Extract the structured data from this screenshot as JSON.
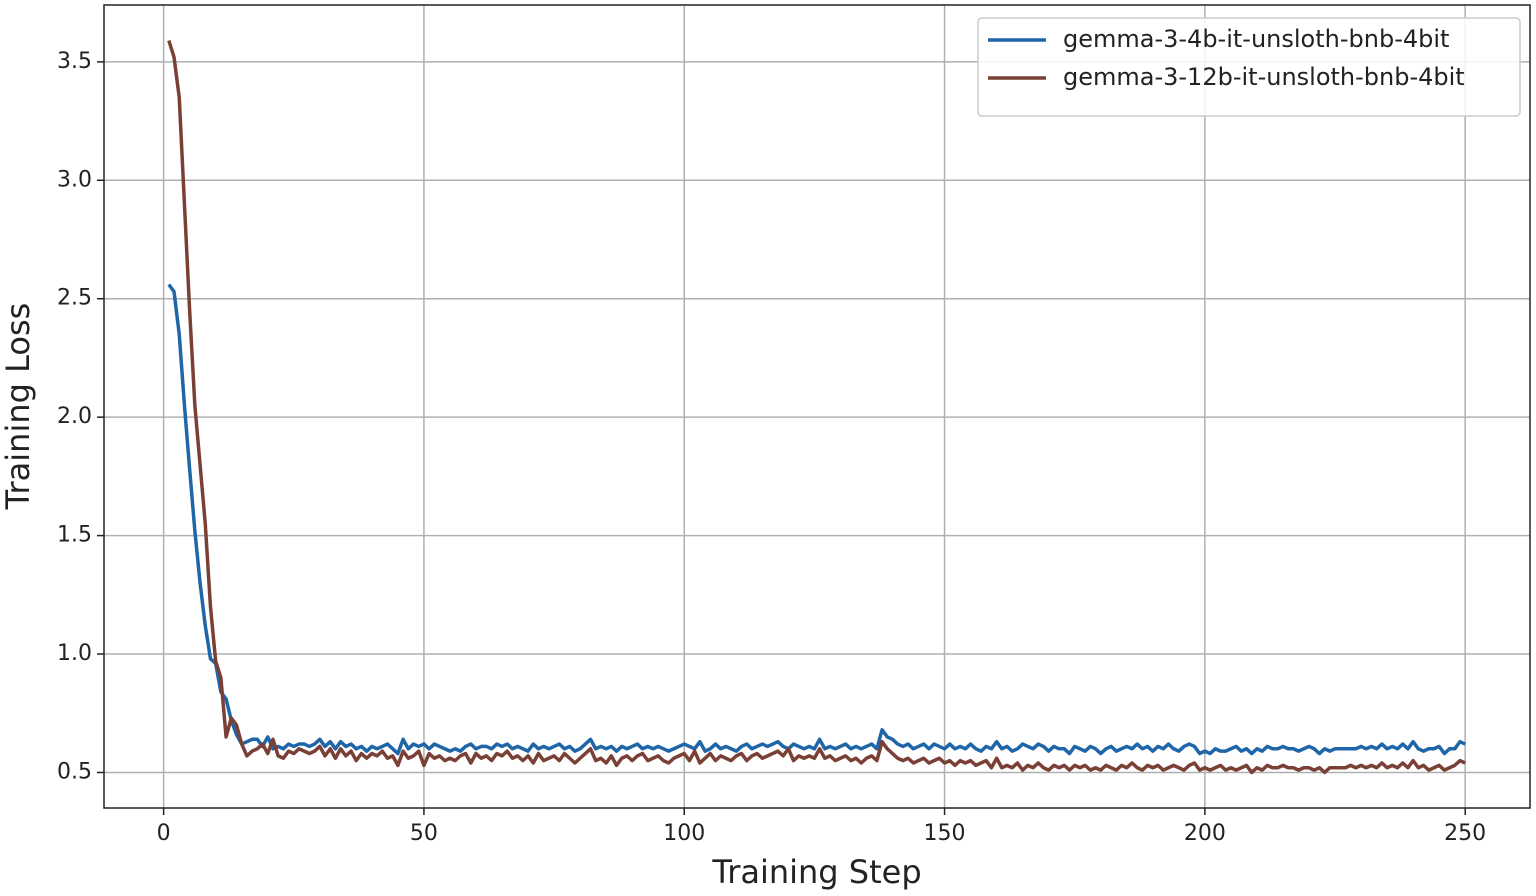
{
  "chart_data": {
    "type": "line",
    "xlabel": "Training Step",
    "ylabel": "Training Loss",
    "xlim": [
      -11.45,
      262.45
    ],
    "ylim": [
      0.35,
      3.74
    ],
    "xticks": [
      0,
      50,
      100,
      150,
      200,
      250
    ],
    "yticks": [
      0.5,
      {
        "value": 1,
        "label": "1.0"
      },
      1.5,
      {
        "value": 2,
        "label": "2.0"
      },
      2.5,
      {
        "value": 3,
        "label": "3.0"
      },
      3.5
    ],
    "grid": true,
    "legend": "upper right",
    "x": [
      1,
      2,
      3,
      4,
      5,
      6,
      7,
      8,
      9,
      10,
      11,
      12,
      13,
      14,
      15,
      16,
      17,
      18,
      19,
      20,
      21,
      22,
      23,
      24,
      25,
      26,
      27,
      28,
      29,
      30,
      31,
      32,
      33,
      34,
      35,
      36,
      37,
      38,
      39,
      40,
      41,
      42,
      43,
      44,
      45,
      46,
      47,
      48,
      49,
      50,
      51,
      52,
      53,
      54,
      55,
      56,
      57,
      58,
      59,
      60,
      61,
      62,
      63,
      64,
      65,
      66,
      67,
      68,
      69,
      70,
      71,
      72,
      73,
      74,
      75,
      76,
      77,
      78,
      79,
      80,
      81,
      82,
      83,
      84,
      85,
      86,
      87,
      88,
      89,
      90,
      91,
      92,
      93,
      94,
      95,
      96,
      97,
      98,
      99,
      100,
      101,
      102,
      103,
      104,
      105,
      106,
      107,
      108,
      109,
      110,
      111,
      112,
      113,
      114,
      115,
      116,
      117,
      118,
      119,
      120,
      121,
      122,
      123,
      124,
      125,
      126,
      127,
      128,
      129,
      130,
      131,
      132,
      133,
      134,
      135,
      136,
      137,
      138,
      139,
      140,
      141,
      142,
      143,
      144,
      145,
      146,
      147,
      148,
      149,
      150,
      151,
      152,
      153,
      154,
      155,
      156,
      157,
      158,
      159,
      160,
      161,
      162,
      163,
      164,
      165,
      166,
      167,
      168,
      169,
      170,
      171,
      172,
      173,
      174,
      175,
      176,
      177,
      178,
      179,
      180,
      181,
      182,
      183,
      184,
      185,
      186,
      187,
      188,
      189,
      190,
      191,
      192,
      193,
      194,
      195,
      196,
      197,
      198,
      199,
      200,
      201,
      202,
      203,
      204,
      205,
      206,
      207,
      208,
      209,
      210,
      211,
      212,
      213,
      214,
      215,
      216,
      217,
      218,
      219,
      220,
      221,
      222,
      223,
      224,
      225,
      226,
      227,
      228,
      229,
      230,
      231,
      232,
      233,
      234,
      235,
      236,
      237,
      238,
      239,
      240,
      241,
      242,
      243,
      244,
      245,
      246,
      247,
      248,
      249,
      250
    ],
    "series": [
      {
        "name": "gemma-3-4b-it-unsloth-bnb-4bit",
        "color": "#1f66a8",
        "values": [
          2.56,
          2.53,
          2.35,
          2.05,
          1.78,
          1.52,
          1.3,
          1.12,
          0.98,
          0.96,
          0.84,
          0.81,
          0.72,
          0.66,
          0.62,
          0.63,
          0.64,
          0.64,
          0.61,
          0.65,
          0.6,
          0.61,
          0.6,
          0.62,
          0.61,
          0.62,
          0.62,
          0.61,
          0.62,
          0.64,
          0.61,
          0.63,
          0.6,
          0.63,
          0.61,
          0.62,
          0.6,
          0.61,
          0.59,
          0.61,
          0.6,
          0.61,
          0.62,
          0.6,
          0.58,
          0.64,
          0.6,
          0.62,
          0.61,
          0.62,
          0.6,
          0.62,
          0.61,
          0.6,
          0.59,
          0.6,
          0.59,
          0.61,
          0.62,
          0.6,
          0.61,
          0.61,
          0.6,
          0.62,
          0.61,
          0.62,
          0.6,
          0.61,
          0.6,
          0.59,
          0.62,
          0.6,
          0.61,
          0.6,
          0.61,
          0.62,
          0.6,
          0.61,
          0.59,
          0.6,
          0.62,
          0.64,
          0.6,
          0.61,
          0.6,
          0.61,
          0.59,
          0.61,
          0.6,
          0.61,
          0.62,
          0.6,
          0.61,
          0.6,
          0.61,
          0.6,
          0.59,
          0.6,
          0.61,
          0.62,
          0.61,
          0.6,
          0.63,
          0.59,
          0.6,
          0.62,
          0.6,
          0.61,
          0.6,
          0.59,
          0.61,
          0.62,
          0.6,
          0.61,
          0.62,
          0.61,
          0.62,
          0.63,
          0.61,
          0.6,
          0.62,
          0.61,
          0.6,
          0.61,
          0.6,
          0.64,
          0.6,
          0.61,
          0.6,
          0.61,
          0.62,
          0.6,
          0.61,
          0.6,
          0.61,
          0.62,
          0.6,
          0.68,
          0.65,
          0.64,
          0.62,
          0.61,
          0.62,
          0.6,
          0.61,
          0.62,
          0.6,
          0.62,
          0.61,
          0.6,
          0.62,
          0.6,
          0.61,
          0.6,
          0.62,
          0.6,
          0.59,
          0.61,
          0.6,
          0.63,
          0.6,
          0.61,
          0.59,
          0.6,
          0.62,
          0.61,
          0.6,
          0.62,
          0.61,
          0.59,
          0.61,
          0.6,
          0.6,
          0.58,
          0.61,
          0.6,
          0.59,
          0.61,
          0.6,
          0.58,
          0.6,
          0.61,
          0.59,
          0.6,
          0.61,
          0.6,
          0.62,
          0.6,
          0.61,
          0.59,
          0.61,
          0.6,
          0.62,
          0.6,
          0.59,
          0.61,
          0.62,
          0.61,
          0.58,
          0.59,
          0.58,
          0.6,
          0.59,
          0.59,
          0.6,
          0.61,
          0.59,
          0.6,
          0.58,
          0.6,
          0.59,
          0.61,
          0.6,
          0.6,
          0.61,
          0.6,
          0.6,
          0.59,
          0.6,
          0.61,
          0.6,
          0.58,
          0.6,
          0.59,
          0.6,
          0.6,
          0.6,
          0.6,
          0.6,
          0.61,
          0.6,
          0.61,
          0.6,
          0.62,
          0.6,
          0.61,
          0.6,
          0.62,
          0.6,
          0.63,
          0.6,
          0.59,
          0.6,
          0.6,
          0.61,
          0.58,
          0.6,
          0.6,
          0.63,
          0.62
        ]
      },
      {
        "name": "gemma-3-12b-it-unsloth-bnb-4bit",
        "color": "#7b4035",
        "values": [
          3.59,
          3.52,
          3.35,
          2.9,
          2.45,
          2.05,
          1.8,
          1.55,
          1.2,
          0.97,
          0.9,
          0.65,
          0.73,
          0.7,
          0.62,
          0.57,
          0.59,
          0.6,
          0.62,
          0.58,
          0.64,
          0.57,
          0.56,
          0.59,
          0.58,
          0.6,
          0.59,
          0.58,
          0.59,
          0.61,
          0.57,
          0.6,
          0.56,
          0.6,
          0.57,
          0.59,
          0.55,
          0.58,
          0.56,
          0.58,
          0.57,
          0.59,
          0.56,
          0.57,
          0.53,
          0.59,
          0.56,
          0.57,
          0.59,
          0.53,
          0.58,
          0.56,
          0.57,
          0.55,
          0.56,
          0.55,
          0.57,
          0.58,
          0.54,
          0.58,
          0.56,
          0.57,
          0.55,
          0.58,
          0.57,
          0.59,
          0.56,
          0.57,
          0.55,
          0.57,
          0.54,
          0.58,
          0.55,
          0.56,
          0.57,
          0.55,
          0.58,
          0.56,
          0.54,
          0.56,
          0.58,
          0.6,
          0.55,
          0.56,
          0.54,
          0.57,
          0.53,
          0.56,
          0.57,
          0.55,
          0.57,
          0.58,
          0.55,
          0.56,
          0.57,
          0.55,
          0.54,
          0.56,
          0.57,
          0.58,
          0.55,
          0.59,
          0.54,
          0.56,
          0.58,
          0.55,
          0.57,
          0.56,
          0.55,
          0.57,
          0.58,
          0.55,
          0.57,
          0.58,
          0.56,
          0.57,
          0.58,
          0.59,
          0.57,
          0.6,
          0.55,
          0.57,
          0.56,
          0.57,
          0.56,
          0.6,
          0.56,
          0.57,
          0.55,
          0.56,
          0.57,
          0.55,
          0.56,
          0.54,
          0.56,
          0.57,
          0.55,
          0.63,
          0.6,
          0.58,
          0.56,
          0.55,
          0.56,
          0.54,
          0.55,
          0.56,
          0.54,
          0.55,
          0.56,
          0.54,
          0.55,
          0.53,
          0.55,
          0.54,
          0.55,
          0.53,
          0.54,
          0.55,
          0.52,
          0.56,
          0.52,
          0.53,
          0.52,
          0.54,
          0.51,
          0.53,
          0.52,
          0.54,
          0.52,
          0.51,
          0.53,
          0.52,
          0.53,
          0.51,
          0.53,
          0.52,
          0.53,
          0.51,
          0.52,
          0.51,
          0.53,
          0.52,
          0.51,
          0.53,
          0.52,
          0.54,
          0.52,
          0.51,
          0.53,
          0.52,
          0.53,
          0.51,
          0.52,
          0.53,
          0.52,
          0.51,
          0.53,
          0.54,
          0.51,
          0.52,
          0.51,
          0.52,
          0.53,
          0.51,
          0.52,
          0.51,
          0.52,
          0.53,
          0.5,
          0.52,
          0.51,
          0.53,
          0.52,
          0.52,
          0.53,
          0.52,
          0.52,
          0.51,
          0.52,
          0.52,
          0.51,
          0.52,
          0.5,
          0.52,
          0.52,
          0.52,
          0.52,
          0.53,
          0.52,
          0.53,
          0.52,
          0.53,
          0.52,
          0.54,
          0.52,
          0.53,
          0.52,
          0.54,
          0.52,
          0.55,
          0.52,
          0.53,
          0.51,
          0.52,
          0.53,
          0.51,
          0.52,
          0.53,
          0.55,
          0.54
        ]
      }
    ]
  }
}
